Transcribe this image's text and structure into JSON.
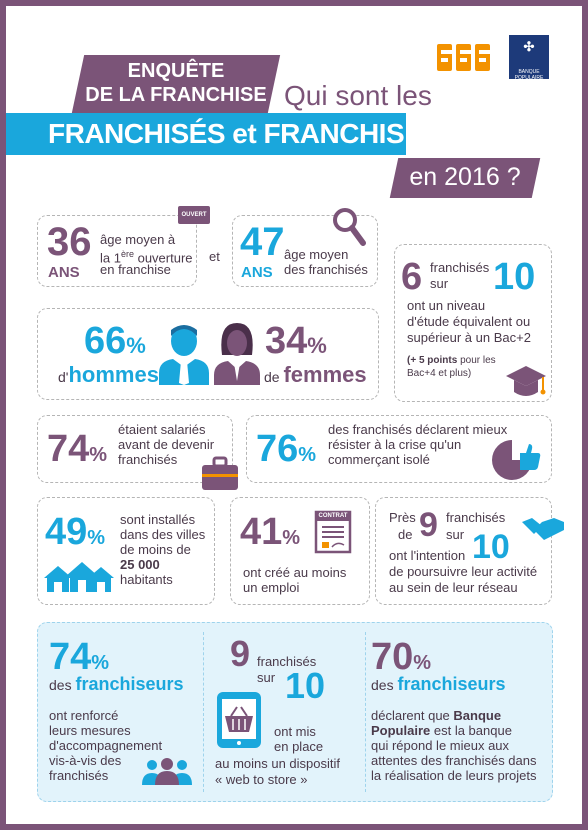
{
  "header": {
    "line1": "ENQUÊTE",
    "line2": "DE LA FRANCHISE",
    "question": "Qui sont les",
    "banner": "FRANCHISÉS et FRANCHISEURS",
    "year": "en 2016 ?",
    "logo_bp_text": "BANQUE POPULAIRE"
  },
  "stats": {
    "s1": {
      "num": "36",
      "unit": "ANS",
      "l1": "âge moyen à",
      "l2a": "la 1",
      "l2sup": "ère",
      "l2b": " ouverture",
      "l3": "en franchise",
      "et": "et",
      "sign": "OUVERT"
    },
    "s2": {
      "num": "47",
      "unit": "ANS",
      "l1": "âge moyen",
      "l2": "des franchisés"
    },
    "s3": {
      "n1": "6",
      "w1": "franchisés",
      "w2": "sur",
      "n2": "10",
      "l1": "ont un niveau",
      "l2": "d'étude équivalent ou",
      "l3": "supérieur à un Bac+2",
      "l4a": "(+ 5 points",
      "l4b": " pour les",
      "l5": "Bac+4 et plus)"
    },
    "s4": {
      "n1": "66",
      "pct": "%",
      "d1": "d'",
      "w1": "hommes",
      "n2": "34",
      "d2": "de ",
      "w2": "femmes"
    },
    "s5": {
      "num": "74",
      "pct": "%",
      "l1": "étaient salariés",
      "l2": "avant de devenir",
      "l3": "franchisés"
    },
    "s6": {
      "num": "76",
      "pct": "%",
      "l1": "des franchisés déclarent mieux",
      "l2": "résister à la crise qu'un",
      "l3": "commerçant isolé"
    },
    "s7": {
      "num": "49",
      "pct": "%",
      "l1": "sont installés",
      "l2": "dans des villes",
      "l3": "de moins de",
      "l4": "25 000",
      "l5": "habitants"
    },
    "s8": {
      "num": "41",
      "pct": "%",
      "l1": "ont créé au moins",
      "l2": "un emploi",
      "sign": "CONTRAT"
    },
    "s9": {
      "w0": "Près",
      "w1": "de",
      "n1": "9",
      "w2": "franchisés",
      "w3": "sur",
      "n2": "10",
      "l1": "ont l'intention",
      "l2": "de poursuivre leur activité",
      "l3": "au sein de leur réseau"
    }
  },
  "franchiseurs": {
    "c1": {
      "num": "74",
      "pct": "%",
      "l1a": "des ",
      "l1b": "franchiseurs",
      "l2": "ont renforcé",
      "l3": "leurs mesures",
      "l4": "d'accompagnement",
      "l5": "vis-à-vis des",
      "l6": "franchisés"
    },
    "c2": {
      "n1": "9",
      "w1": "franchisés",
      "w2": "sur",
      "n2": "10",
      "l1": "ont mis",
      "l2": "en place",
      "l3": "au moins un dispositif",
      "l4": "« web to store »"
    },
    "c3": {
      "num": "70",
      "pct": "%",
      "l1a": "des ",
      "l1b": "franchiseurs",
      "l2": "déclarent que ",
      "l2b": "Banque",
      "l3b": "Populaire",
      "l3": " est la banque",
      "l4": "qui répond le mieux aux",
      "l5": "attentes des franchisés dans",
      "l6": "la réalisation de leurs projets"
    }
  },
  "colors": {
    "purple": "#7b5478",
    "blue": "#1aa7dc",
    "orange": "#f39200",
    "navy": "#1d3a7a"
  }
}
